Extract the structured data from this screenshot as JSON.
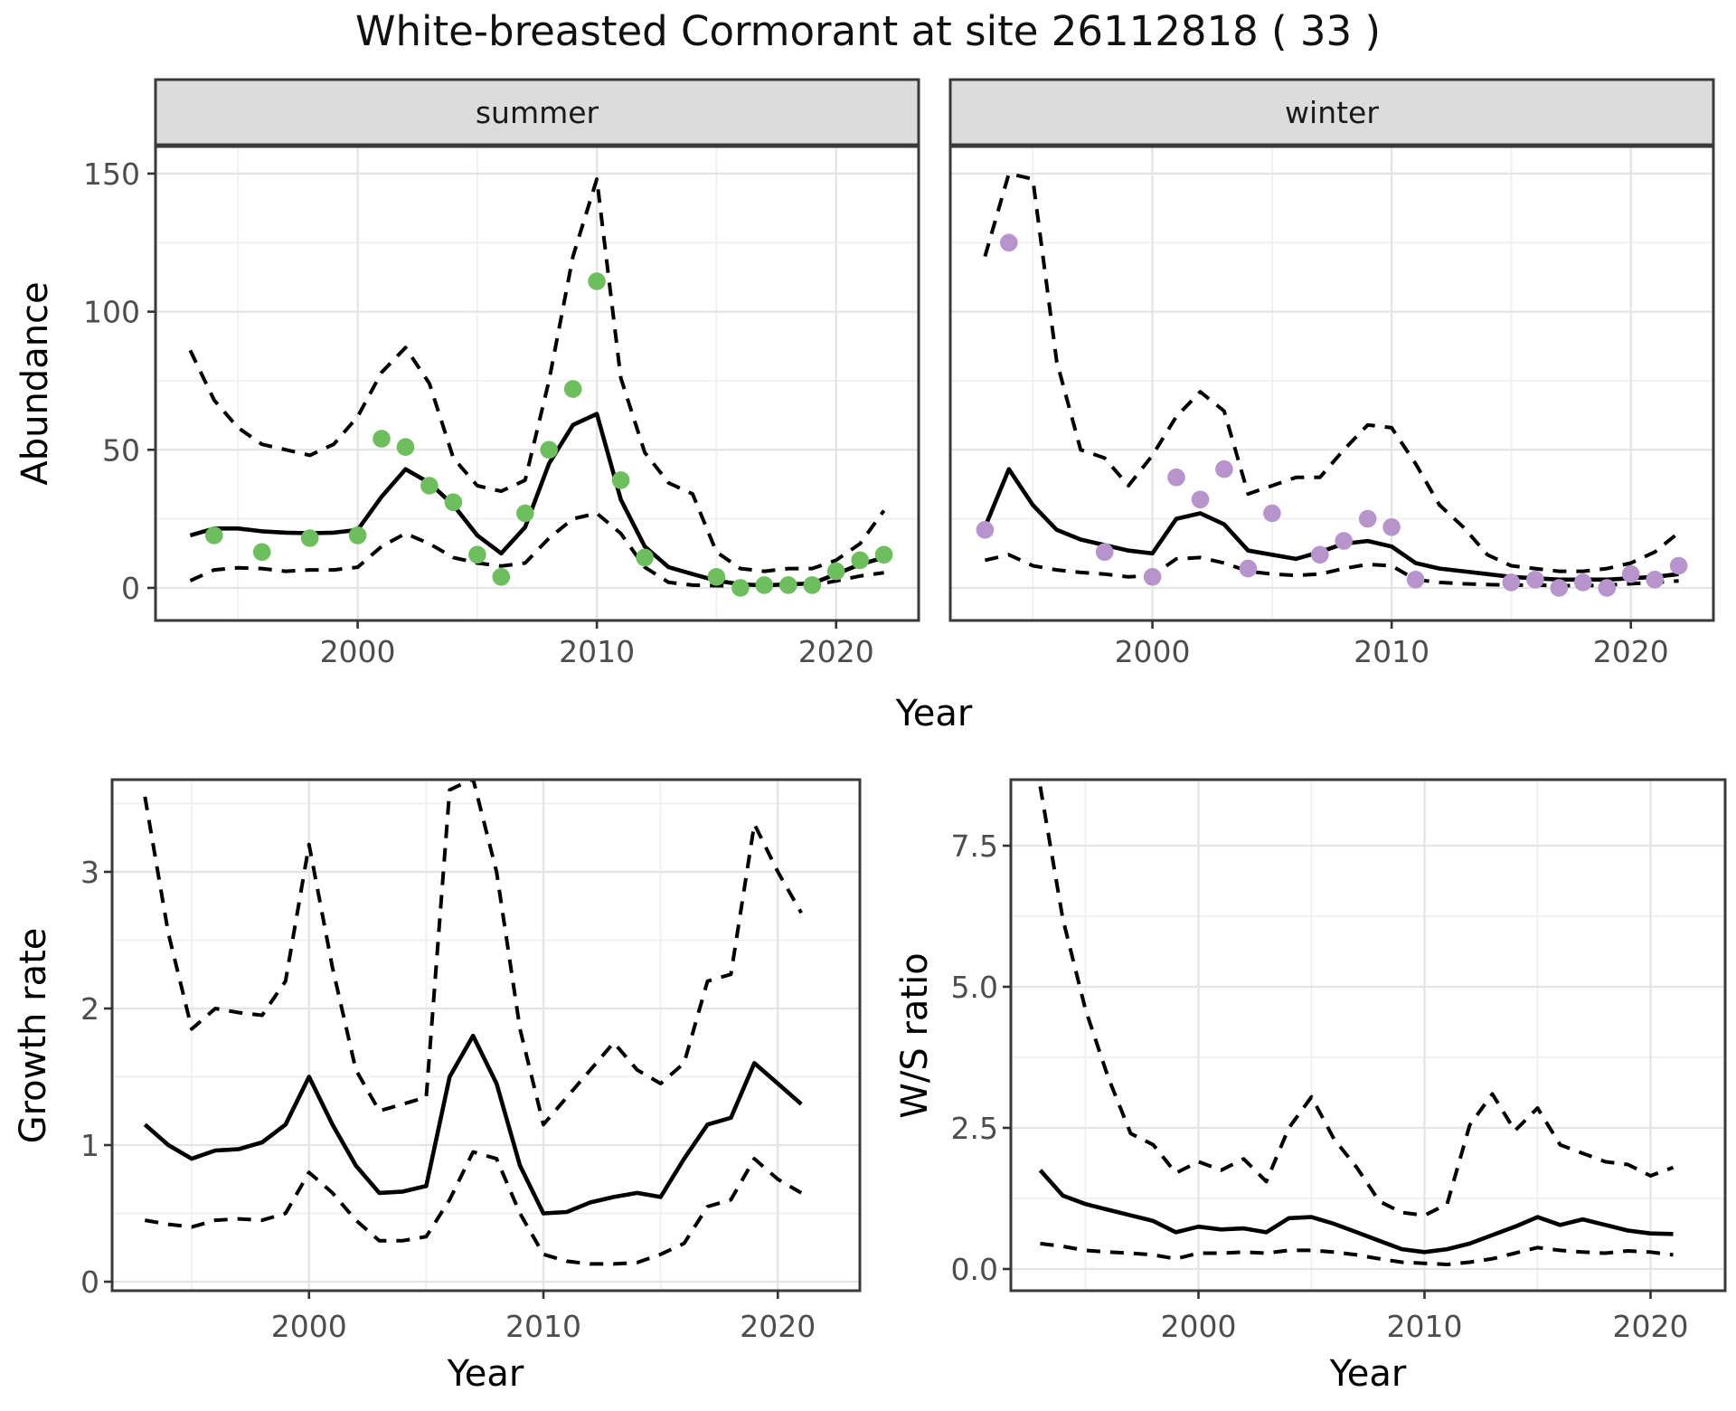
{
  "title": "White-breasted Cormorant at site 26112818 ( 33 )",
  "colors": {
    "summer_point": "#6DBF5E",
    "winter_point": "#B794CB",
    "line": "#000000",
    "tick_label": "#4D4D4D",
    "axis_title": "#000000",
    "strip_bg": "#DCDCDC",
    "strip_text": "#1A1A1A",
    "grid_major": "#E4E4E4",
    "grid_minor": "#EFEFEF",
    "panel_border": "#3A3A3A",
    "tick_mark": "#333333",
    "background": "#FFFFFF"
  },
  "chart_data": [
    {
      "id": "abundance-summer",
      "type": "line",
      "facet": "summer",
      "ylabel": "Abundance",
      "xlabel": "Year",
      "grid": true,
      "legend": "none",
      "x_ticks": {
        "labels": [
          "2000",
          "2010",
          "2020"
        ],
        "values": [
          2000,
          2010,
          2020
        ]
      },
      "y_ticks": {
        "labels": [
          "0",
          "50",
          "100",
          "150"
        ],
        "values": [
          0,
          50,
          100,
          150
        ]
      },
      "xlim": [
        1991.55,
        2023.45
      ],
      "ylim": [
        -11.8,
        159.8
      ],
      "lines": [
        {
          "role": "median",
          "style": "solid",
          "x": [
            1993,
            1994,
            1995,
            1996,
            1997,
            1998,
            1999,
            2000,
            2001,
            2002,
            2003,
            2004,
            2005,
            2006,
            2007,
            2008,
            2009,
            2010,
            2011,
            2012,
            2013,
            2014,
            2015,
            2016,
            2017,
            2018,
            2019,
            2020,
            2021,
            2022
          ],
          "y": [
            19,
            21.5,
            21.5,
            20.5,
            20,
            19.8,
            20,
            21,
            33,
            43,
            38,
            30,
            19,
            12.5,
            22,
            45,
            59,
            63,
            32,
            15,
            7.5,
            5,
            2.6,
            1.3,
            0.9,
            1.3,
            1.6,
            5,
            8.5,
            11
          ]
        },
        {
          "role": "upper-ci",
          "style": "dashed",
          "x": [
            1993,
            1994,
            1995,
            1996,
            1997,
            1998,
            1999,
            2000,
            2001,
            2002,
            2003,
            2004,
            2005,
            2006,
            2007,
            2008,
            2009,
            2010,
            2011,
            2012,
            2013,
            2014,
            2015,
            2016,
            2017,
            2018,
            2019,
            2020,
            2021,
            2022
          ],
          "y": [
            86,
            68,
            58,
            52,
            50,
            48,
            52,
            62,
            78,
            87,
            74,
            47,
            37,
            35,
            39,
            75,
            120,
            148,
            76,
            49,
            38,
            34,
            13,
            7,
            6,
            7,
            7,
            10,
            16,
            28
          ]
        },
        {
          "role": "lower-ci",
          "style": "dashed",
          "x": [
            1993,
            1994,
            1995,
            1996,
            1997,
            1998,
            1999,
            2000,
            2001,
            2002,
            2003,
            2004,
            2005,
            2006,
            2007,
            2008,
            2009,
            2010,
            2011,
            2012,
            2013,
            2014,
            2015,
            2016,
            2017,
            2018,
            2019,
            2020,
            2021,
            2022
          ],
          "y": [
            2.6,
            6.5,
            7.3,
            7,
            6,
            6.5,
            6.5,
            7.5,
            15,
            19.7,
            16,
            11,
            9,
            7.9,
            9,
            18,
            25,
            27,
            19.7,
            7.5,
            2,
            1,
            0.8,
            0.7,
            0.7,
            0.8,
            1,
            2.5,
            4.3,
            5.5
          ]
        }
      ],
      "points": {
        "color_key": "summer_point",
        "x": [
          1994,
          1996,
          1998,
          2000,
          2001,
          2002,
          2003,
          2004,
          2005,
          2006,
          2007,
          2008,
          2009,
          2010,
          2011,
          2012,
          2015,
          2016,
          2017,
          2018,
          2019,
          2020,
          2021,
          2022
        ],
        "y": [
          19,
          13,
          18,
          19,
          54,
          51,
          37,
          31,
          12,
          4,
          27,
          50,
          72,
          111,
          39,
          11,
          4,
          0,
          1,
          1,
          1,
          6,
          10,
          12
        ]
      }
    },
    {
      "id": "abundance-winter",
      "type": "line",
      "facet": "winter",
      "ylabel": "Abundance",
      "xlabel": "Year",
      "grid": true,
      "legend": "none",
      "x_ticks": {
        "labels": [
          "2000",
          "2010",
          "2020"
        ],
        "values": [
          2000,
          2010,
          2020
        ]
      },
      "y_ticks": {
        "labels": [
          "0",
          "50",
          "100",
          "150"
        ],
        "values": [
          0,
          50,
          100,
          150
        ]
      },
      "xlim": [
        1991.55,
        2023.45
      ],
      "ylim": [
        -11.8,
        159.8
      ],
      "lines": [
        {
          "role": "median",
          "style": "solid",
          "x": [
            1993,
            1994,
            1995,
            1996,
            1997,
            1998,
            1999,
            2000,
            2001,
            2002,
            2003,
            2004,
            2005,
            2006,
            2007,
            2008,
            2009,
            2010,
            2011,
            2012,
            2013,
            2014,
            2015,
            2016,
            2017,
            2018,
            2019,
            2020,
            2021,
            2022
          ],
          "y": [
            22,
            43,
            30,
            21,
            17.5,
            15.5,
            13.5,
            12.5,
            25,
            27,
            23,
            13.5,
            12,
            10.5,
            13,
            16,
            17,
            15,
            9,
            7,
            6,
            5,
            4,
            3.5,
            3,
            3,
            3,
            3.5,
            4,
            5
          ]
        },
        {
          "role": "upper-ci",
          "style": "dashed",
          "x": [
            1993,
            1994,
            1995,
            1996,
            1997,
            1998,
            1999,
            2000,
            2001,
            2002,
            2003,
            2004,
            2005,
            2006,
            2007,
            2008,
            2009,
            2010,
            2011,
            2012,
            2013,
            2014,
            2015,
            2016,
            2017,
            2018,
            2019,
            2020,
            2021,
            2022
          ],
          "y": [
            120,
            150,
            148,
            82,
            50,
            47,
            37,
            48,
            62,
            71,
            64,
            34,
            37,
            40,
            40,
            50,
            59,
            58,
            45,
            30,
            22,
            12,
            8,
            7,
            6,
            6,
            7,
            9,
            13,
            20
          ]
        },
        {
          "role": "lower-ci",
          "style": "dashed",
          "x": [
            1993,
            1994,
            1995,
            1996,
            1997,
            1998,
            1999,
            2000,
            2001,
            2002,
            2003,
            2004,
            2005,
            2006,
            2007,
            2008,
            2009,
            2010,
            2011,
            2012,
            2013,
            2014,
            2015,
            2016,
            2017,
            2018,
            2019,
            2020,
            2021,
            2022
          ],
          "y": [
            10,
            12,
            8,
            6.5,
            5.6,
            5,
            4,
            4.5,
            10.5,
            11,
            9,
            6,
            5,
            4.5,
            5,
            7,
            8.5,
            8,
            3,
            2,
            1.5,
            1.2,
            1,
            1,
            0.8,
            0.8,
            1,
            1.5,
            2,
            2.5
          ]
        }
      ],
      "points": {
        "color_key": "winter_point",
        "x": [
          1993,
          1994,
          1998,
          2000,
          2001,
          2002,
          2003,
          2004,
          2005,
          2007,
          2008,
          2009,
          2010,
          2011,
          2015,
          2016,
          2017,
          2018,
          2019,
          2020,
          2021,
          2022
        ],
        "y": [
          21,
          125,
          13,
          4,
          40,
          32,
          43,
          7,
          27,
          12,
          17,
          25,
          22,
          3,
          2,
          3,
          0,
          2,
          0,
          5,
          3,
          8
        ]
      }
    },
    {
      "id": "growth-rate",
      "type": "line",
      "facet": null,
      "ylabel": "Growth rate",
      "xlabel": "Year",
      "grid": true,
      "legend": "none",
      "x_ticks": {
        "labels": [
          "2000",
          "2010",
          "2020"
        ],
        "values": [
          2000,
          2010,
          2020
        ]
      },
      "y_ticks": {
        "labels": [
          "0",
          "1",
          "2",
          "3"
        ],
        "values": [
          0,
          1,
          2,
          3
        ]
      },
      "xlim": [
        1991.6,
        2023.5
      ],
      "ylim": [
        -0.066,
        3.675
      ],
      "lines": [
        {
          "role": "median",
          "style": "solid",
          "x": [
            1993,
            1994,
            1995,
            1996,
            1997,
            1998,
            1999,
            2000,
            2001,
            2002,
            2003,
            2004,
            2005,
            2006,
            2007,
            2008,
            2009,
            2010,
            2011,
            2012,
            2013,
            2014,
            2015,
            2016,
            2017,
            2018,
            2019,
            2020,
            2021
          ],
          "y": [
            1.15,
            1.0,
            0.9,
            0.96,
            0.97,
            1.02,
            1.15,
            1.5,
            1.15,
            0.85,
            0.65,
            0.66,
            0.7,
            1.5,
            1.8,
            1.45,
            0.85,
            0.5,
            0.51,
            0.58,
            0.62,
            0.65,
            0.62,
            0.9,
            1.15,
            1.2,
            1.6,
            1.45,
            1.3
          ]
        },
        {
          "role": "upper-ci",
          "style": "dashed",
          "x": [
            1993,
            1994,
            1995,
            1996,
            1997,
            1998,
            1999,
            2000,
            2001,
            2002,
            2003,
            2004,
            2005,
            2006,
            2007,
            2008,
            2009,
            2010,
            2011,
            2012,
            2013,
            2014,
            2015,
            2016,
            2017,
            2018,
            2019,
            2020,
            2021
          ],
          "y": [
            3.55,
            2.55,
            1.85,
            2.0,
            1.97,
            1.95,
            2.2,
            3.2,
            2.3,
            1.55,
            1.25,
            1.3,
            1.35,
            3.6,
            3.68,
            3.0,
            1.85,
            1.15,
            1.35,
            1.55,
            1.75,
            1.55,
            1.45,
            1.6,
            2.2,
            2.25,
            3.35,
            3.0,
            2.7
          ]
        },
        {
          "role": "lower-ci",
          "style": "dashed",
          "x": [
            1993,
            1994,
            1995,
            1996,
            1997,
            1998,
            1999,
            2000,
            2001,
            2002,
            2003,
            2004,
            2005,
            2006,
            2007,
            2008,
            2009,
            2010,
            2011,
            2012,
            2013,
            2014,
            2015,
            2016,
            2017,
            2018,
            2019,
            2020,
            2021
          ],
          "y": [
            0.45,
            0.42,
            0.4,
            0.45,
            0.46,
            0.45,
            0.5,
            0.8,
            0.65,
            0.45,
            0.3,
            0.3,
            0.33,
            0.6,
            0.95,
            0.9,
            0.5,
            0.2,
            0.15,
            0.13,
            0.13,
            0.14,
            0.2,
            0.28,
            0.55,
            0.6,
            0.9,
            0.75,
            0.65
          ]
        }
      ],
      "points": null
    },
    {
      "id": "ws-ratio",
      "type": "line",
      "facet": null,
      "ylabel": "W/S ratio",
      "xlabel": "Year",
      "grid": true,
      "legend": "none",
      "x_ticks": {
        "labels": [
          "2000",
          "2010",
          "2020"
        ],
        "values": [
          2000,
          2010,
          2020
        ]
      },
      "y_ticks": {
        "labels": [
          "0.0",
          "2.5",
          "5.0",
          "7.5"
        ],
        "values": [
          0,
          2.5,
          5,
          7.5
        ]
      },
      "xlim": [
        1991.7,
        2023.3
      ],
      "ylim": [
        -0.385,
        8.67
      ],
      "lines": [
        {
          "role": "median",
          "style": "solid",
          "x": [
            1993,
            1994,
            1995,
            1996,
            1997,
            1998,
            1999,
            2000,
            2001,
            2002,
            2003,
            2004,
            2005,
            2006,
            2007,
            2008,
            2009,
            2010,
            2011,
            2012,
            2013,
            2014,
            2015,
            2016,
            2017,
            2018,
            2019,
            2020,
            2021
          ],
          "y": [
            1.75,
            1.3,
            1.15,
            1.05,
            0.95,
            0.85,
            0.65,
            0.75,
            0.7,
            0.72,
            0.65,
            0.9,
            0.92,
            0.8,
            0.65,
            0.5,
            0.35,
            0.3,
            0.35,
            0.45,
            0.6,
            0.75,
            0.92,
            0.78,
            0.88,
            0.78,
            0.68,
            0.63,
            0.62
          ]
        },
        {
          "role": "upper-ci",
          "style": "dashed",
          "x": [
            1993,
            1994,
            1995,
            1996,
            1997,
            1998,
            1999,
            2000,
            2001,
            2002,
            2003,
            2004,
            2005,
            2006,
            2007,
            2008,
            2009,
            2010,
            2011,
            2012,
            2013,
            2014,
            2015,
            2016,
            2017,
            2018,
            2019,
            2020,
            2021
          ],
          "y": [
            8.55,
            6.2,
            4.6,
            3.4,
            2.4,
            2.2,
            1.7,
            1.9,
            1.75,
            1.95,
            1.55,
            2.5,
            3.05,
            2.3,
            1.8,
            1.2,
            1.0,
            0.95,
            1.15,
            2.55,
            3.1,
            2.45,
            2.85,
            2.2,
            2.05,
            1.9,
            1.85,
            1.65,
            1.8
          ]
        },
        {
          "role": "lower-ci",
          "style": "dashed",
          "x": [
            1993,
            1994,
            1995,
            1996,
            1997,
            1998,
            1999,
            2000,
            2001,
            2002,
            2003,
            2004,
            2005,
            2006,
            2007,
            2008,
            2009,
            2010,
            2011,
            2012,
            2013,
            2014,
            2015,
            2016,
            2017,
            2018,
            2019,
            2020,
            2021
          ],
          "y": [
            0.45,
            0.4,
            0.33,
            0.3,
            0.28,
            0.25,
            0.18,
            0.28,
            0.28,
            0.3,
            0.28,
            0.33,
            0.33,
            0.3,
            0.25,
            0.18,
            0.12,
            0.1,
            0.08,
            0.12,
            0.18,
            0.28,
            0.38,
            0.33,
            0.3,
            0.28,
            0.32,
            0.3,
            0.25
          ]
        }
      ],
      "points": null
    }
  ]
}
